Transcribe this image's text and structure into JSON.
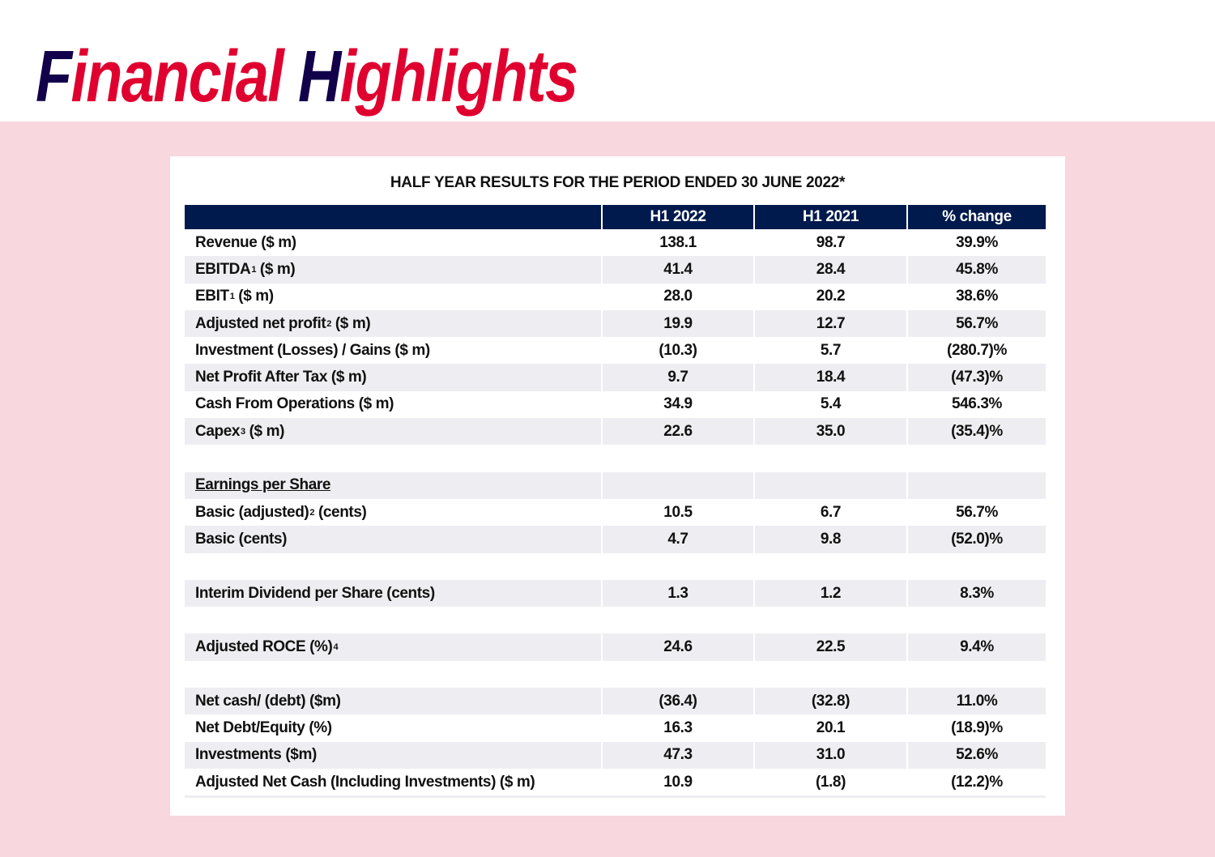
{
  "title": {
    "part1_initial": "F",
    "part1_rest": "inancial",
    "part2_initial": "H",
    "part2_rest": "ighlights"
  },
  "colors": {
    "navy": "#12004a",
    "red": "#e0002f",
    "band": "#f8d7de",
    "header": "#001a4e"
  },
  "table": {
    "caption": "HALF YEAR RESULTS FOR THE PERIOD ENDED 30 JUNE 2022*",
    "columns": [
      "",
      "H1 2022",
      "H1 2021",
      "% change"
    ],
    "rows": [
      {
        "type": "data",
        "label": "Revenue ($ m)",
        "h1_2022": "138.1",
        "h1_2021": "98.7",
        "change": "39.9%"
      },
      {
        "type": "data",
        "label": "EBITDA",
        "sup": "1",
        "label_suffix": " ($ m)",
        "h1_2022": "41.4",
        "h1_2021": "28.4",
        "change": "45.8%"
      },
      {
        "type": "data",
        "label": "EBIT",
        "sup": "1",
        "label_suffix": " ($ m)",
        "h1_2022": "28.0",
        "h1_2021": "20.2",
        "change": "38.6%"
      },
      {
        "type": "data",
        "label": "Adjusted net profit",
        "sup": "2",
        "label_suffix": " ($ m)",
        "h1_2022": "19.9",
        "h1_2021": "12.7",
        "change": "56.7%"
      },
      {
        "type": "data",
        "label": "Investment (Losses) / Gains ($ m)",
        "h1_2022": "(10.3)",
        "h1_2021": "5.7",
        "change": "(280.7)%"
      },
      {
        "type": "data",
        "label": "Net Profit After Tax ($ m)",
        "h1_2022": "9.7",
        "h1_2021": "18.4",
        "change": "(47.3)%"
      },
      {
        "type": "data",
        "label": "Cash From Operations ($ m)",
        "h1_2022": "34.9",
        "h1_2021": "5.4",
        "change": "546.3%"
      },
      {
        "type": "data",
        "label": "Capex",
        "sup": "3",
        "label_suffix": " ($ m)",
        "h1_2022": "22.6",
        "h1_2021": "35.0",
        "change": "(35.4)%"
      },
      {
        "type": "blank"
      },
      {
        "type": "section",
        "label": "Earnings per Share"
      },
      {
        "type": "data",
        "label": "Basic (adjusted)",
        "sup": "2",
        "label_suffix": " (cents)",
        "h1_2022": "10.5",
        "h1_2021": "6.7",
        "change": "56.7%"
      },
      {
        "type": "data",
        "label": "Basic (cents)",
        "h1_2022": "4.7",
        "h1_2021": "9.8",
        "change": "(52.0)%"
      },
      {
        "type": "blank"
      },
      {
        "type": "data",
        "label": "Interim Dividend per Share (cents)",
        "h1_2022": "1.3",
        "h1_2021": "1.2",
        "change": "8.3%"
      },
      {
        "type": "blank"
      },
      {
        "type": "data",
        "label": "Adjusted ROCE (%) ",
        "sup": "4",
        "h1_2022": "24.6",
        "h1_2021": "22.5",
        "change": "9.4%"
      },
      {
        "type": "blank"
      },
      {
        "type": "data",
        "label": "Net cash/ (debt) ($m)",
        "h1_2022": "(36.4)",
        "h1_2021": "(32.8)",
        "change": "11.0%"
      },
      {
        "type": "data",
        "label": "Net Debt/Equity (%)",
        "h1_2022": "16.3",
        "h1_2021": "20.1",
        "change": "(18.9)%"
      },
      {
        "type": "data",
        "label": "Investments ($m)",
        "h1_2022": "47.3",
        "h1_2021": "31.0",
        "change": "52.6%"
      },
      {
        "type": "data",
        "label": "Adjusted Net Cash (Including Investments) ($ m)",
        "h1_2022": "10.9",
        "h1_2021": "(1.8)",
        "change": "(12.2)%"
      }
    ]
  }
}
